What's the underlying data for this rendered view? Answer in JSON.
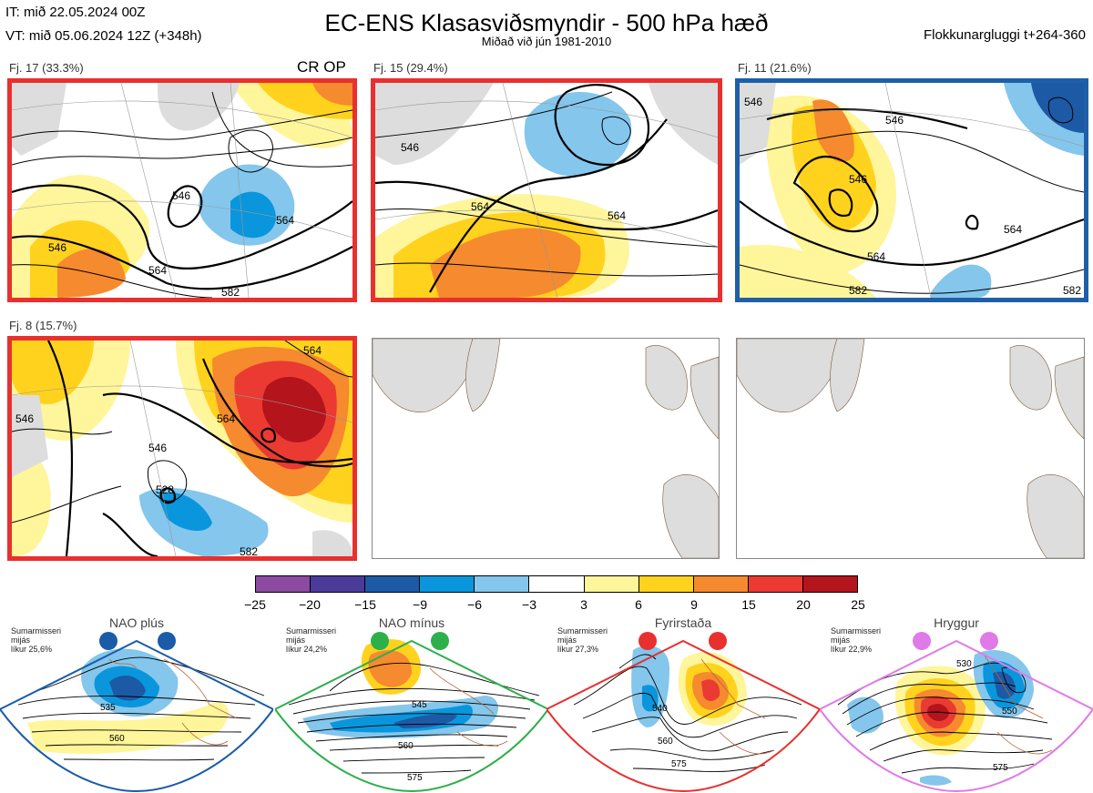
{
  "header": {
    "it": "IT: mið 22.05.2024 00Z",
    "vt": "VT: mið 05.06.2024 12Z  (+348h)",
    "title": "EC-ENS Klasasviðsmyndir - 500 hPa hæð",
    "subtitle": "Miðað við jún 1981-2010",
    "window": "Flokkunargluggi t+264-360"
  },
  "clusters": [
    {
      "label": "Fj. 17 (33.3%)",
      "frame_color": "#e8302e",
      "extra": "CR OP",
      "contours": [
        "546",
        "546",
        "564",
        "564",
        "582"
      ]
    },
    {
      "label": "Fj. 15 (29.4%)",
      "frame_color": "#e8302e",
      "extra": "",
      "contours": [
        "546",
        "564",
        "564"
      ]
    },
    {
      "label": "Fj. 11 (21.6%)",
      "frame_color": "#1f5fa8",
      "extra": "",
      "contours": [
        "546",
        "546",
        "546",
        "564",
        "564",
        "582",
        "582"
      ]
    },
    {
      "label": "Fj. 8 (15.7%)",
      "frame_color": "#e8302e",
      "extra": "",
      "contours": [
        "564",
        "546",
        "564",
        "528",
        "546",
        "582"
      ]
    }
  ],
  "colorbar": {
    "colors": [
      "#8c4aa0",
      "#4c3a9a",
      "#1c5aa6",
      "#0a96dc",
      "#84c6ec",
      "#ffffff",
      "#fff59a",
      "#ffd21e",
      "#f58a2e",
      "#ea3a32",
      "#b4141c"
    ],
    "ticks": [
      "−25",
      "−20",
      "−15",
      "−9",
      "−6",
      "−3",
      "3",
      "6",
      "9",
      "15",
      "20",
      "25"
    ]
  },
  "regimes": [
    {
      "name": "NAO plús",
      "season": "Sumarmisseri",
      "period": "mijás",
      "prob": "líkur 25,6%",
      "color": "#1a5ca8",
      "contours": [
        "535",
        "560"
      ]
    },
    {
      "name": "NAO mínus",
      "season": "Sumarmisseri",
      "period": "mijás",
      "prob": "líkur 24,2%",
      "color": "#2db04a",
      "contours": [
        "545",
        "560",
        "575"
      ]
    },
    {
      "name": "Fyrirstaða",
      "season": "Sumarmisseri",
      "period": "mijás",
      "prob": "líkur 27,3%",
      "color": "#e8302e",
      "contours": [
        "540",
        "560",
        "575"
      ]
    },
    {
      "name": "Hryggur",
      "season": "Sumarmisseri",
      "period": "mijás",
      "prob": "líkur 22,9%",
      "color": "#e07ae8",
      "contours": [
        "530",
        "550",
        "575"
      ]
    }
  ]
}
